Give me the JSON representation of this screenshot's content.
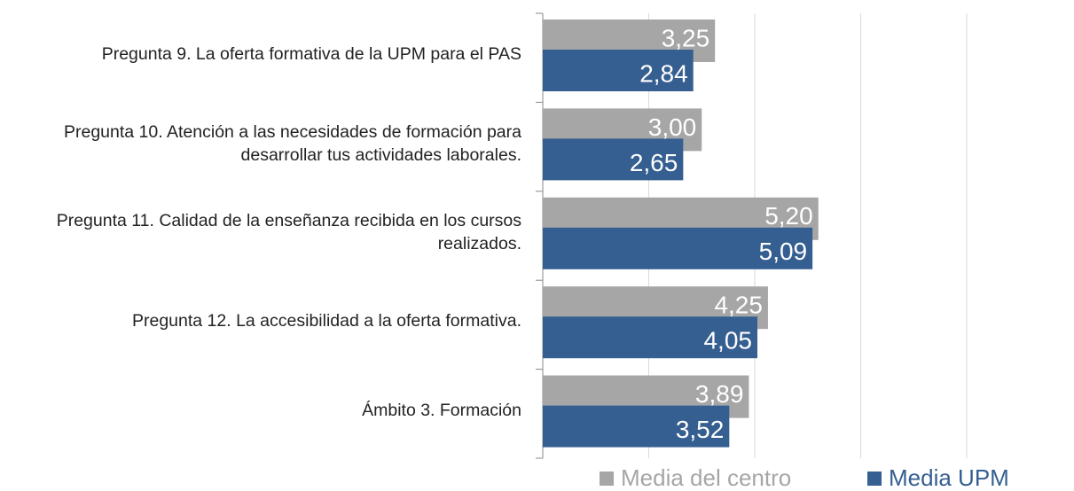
{
  "chart_data": {
    "type": "bar",
    "orientation": "horizontal",
    "categories": [
      "Pregunta 9. La oferta formativa de la UPM para el PAS",
      "Pregunta 10. Atención a las necesidades de formación para desarrollar tus actividades laborales.",
      "Pregunta 11. Calidad de la enseñanza recibida en los cursos realizados.",
      "Pregunta 12. La accesibilidad a la oferta formativa.",
      "Ámbito 3. Formación"
    ],
    "series": [
      {
        "name": "Media del centro",
        "color": "#a6a6a6",
        "values": [
          3.25,
          3.0,
          5.2,
          4.25,
          3.89
        ],
        "value_labels": [
          "3,25",
          "3,00",
          "5,20",
          "4,25",
          "3,89"
        ]
      },
      {
        "name": "Media UPM",
        "color": "#355f91",
        "values": [
          2.84,
          2.65,
          5.09,
          4.05,
          3.52
        ],
        "value_labels": [
          "2,84",
          "2,65",
          "5,09",
          "4,05",
          "3,52"
        ]
      }
    ],
    "xlim": [
      0,
      8
    ],
    "xticks": [
      0,
      2,
      4,
      6,
      8
    ],
    "grid": true,
    "legend": "bottom"
  }
}
